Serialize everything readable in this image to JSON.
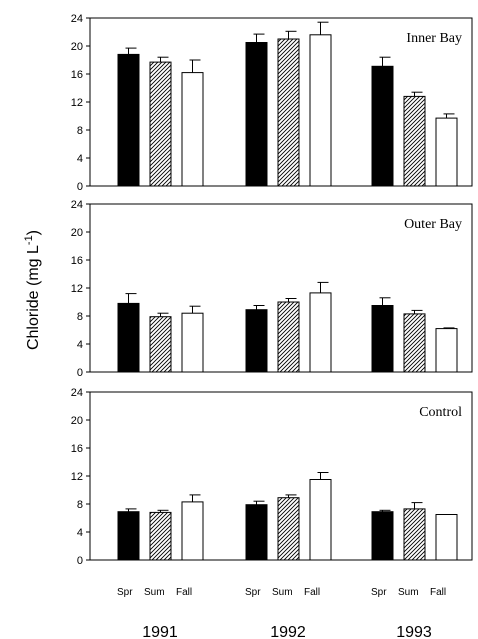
{
  "chart_data": {
    "type": "bar",
    "ylabel": "Chloride (mg L-1)",
    "ylabel_main": "Chloride (mg L",
    "ylabel_sup": "-1",
    "ylabel_close": ")",
    "ylim": [
      0,
      24
    ],
    "yticks": [
      0,
      4,
      8,
      12,
      16,
      20,
      24
    ],
    "groups": [
      "1991",
      "1992",
      "1993"
    ],
    "season_labels": [
      "Spr",
      "Sum",
      "Fall"
    ],
    "series": [
      {
        "name": "Spr",
        "fill": "#000000"
      },
      {
        "name": "Sum",
        "fill": "hatched"
      },
      {
        "name": "Fall",
        "fill": "#ffffff"
      }
    ],
    "panels": [
      {
        "label": "Inner Bay",
        "values": [
          [
            18.8,
            17.7,
            16.2
          ],
          [
            20.5,
            21.0,
            21.6
          ],
          [
            17.1,
            12.8,
            9.7
          ]
        ],
        "errors": [
          [
            0.9,
            0.7,
            1.8
          ],
          [
            1.2,
            1.1,
            1.8
          ],
          [
            1.3,
            0.6,
            0.6
          ]
        ]
      },
      {
        "label": "Outer Bay",
        "values": [
          [
            9.8,
            7.9,
            8.4
          ],
          [
            8.9,
            10.0,
            11.3
          ],
          [
            9.5,
            8.3,
            6.2
          ]
        ],
        "errors": [
          [
            1.4,
            0.5,
            1.0
          ],
          [
            0.6,
            0.5,
            1.5
          ],
          [
            1.1,
            0.5,
            0.1
          ]
        ]
      },
      {
        "label": "Control",
        "values": [
          [
            6.9,
            6.8,
            8.3
          ],
          [
            7.9,
            8.9,
            11.5
          ],
          [
            6.9,
            7.3,
            6.5
          ]
        ],
        "errors": [
          [
            0.4,
            0.3,
            1.0
          ],
          [
            0.5,
            0.4,
            1.0
          ],
          [
            0.2,
            0.9,
            0.0
          ]
        ]
      }
    ],
    "grid": false,
    "legend": "none"
  }
}
